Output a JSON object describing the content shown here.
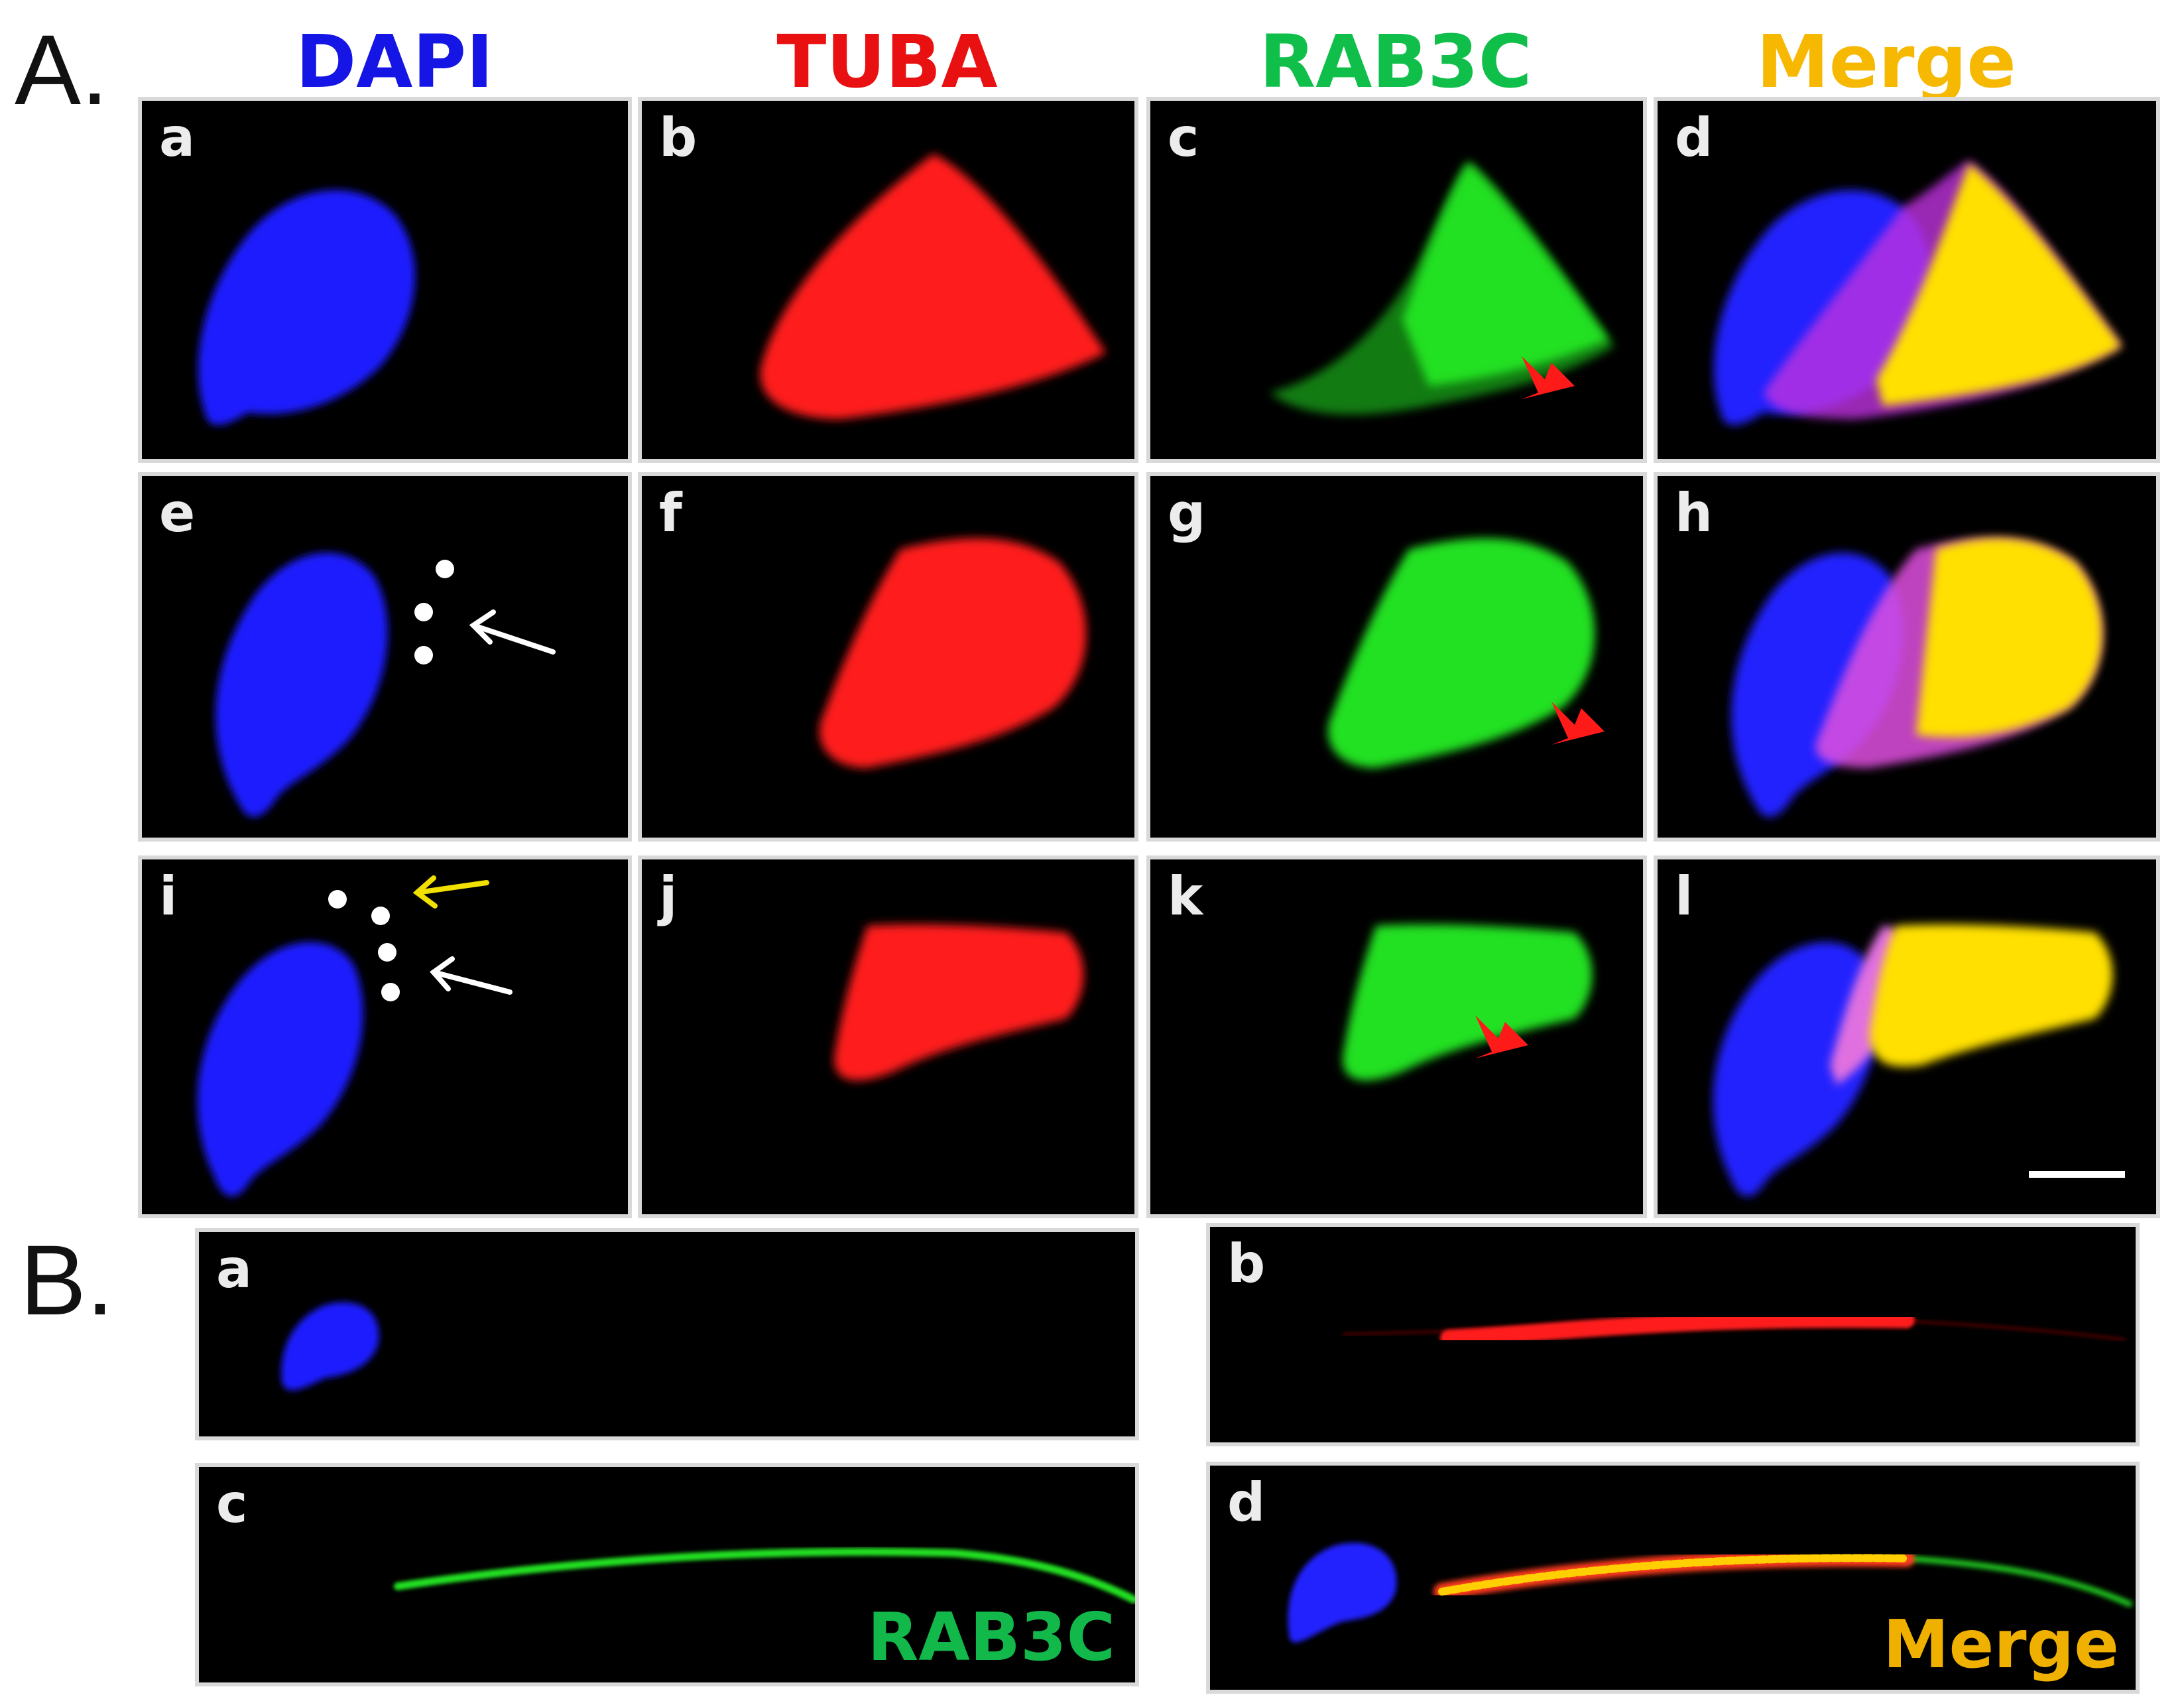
{
  "figure": {
    "section_a": "A.",
    "section_b": "B.",
    "columns": [
      {
        "label": "DAPI",
        "color": "#1515e6"
      },
      {
        "label": "TUBA",
        "color": "#e81010"
      },
      {
        "label": "RAB3C",
        "color": "#0fbf4a"
      },
      {
        "label": "Merge",
        "color": "#f6b800"
      }
    ],
    "panels_a": [
      "a",
      "b",
      "c",
      "d",
      "e",
      "f",
      "g",
      "h",
      "i",
      "j",
      "k",
      "l"
    ],
    "panels_b": [
      "a",
      "b",
      "c",
      "d"
    ],
    "panel_b_c_label": "RAB3C",
    "panel_b_d_label": "Merge",
    "colors": {
      "dapi": "#1a1aff",
      "tuba": "#ff1a1a",
      "rab3c": "#22e022",
      "merge": "#ffe000",
      "arrow_red": "#ff1a1a",
      "arrow_yellow": "#f2e000",
      "arrow_white": "#ffffff"
    }
  }
}
